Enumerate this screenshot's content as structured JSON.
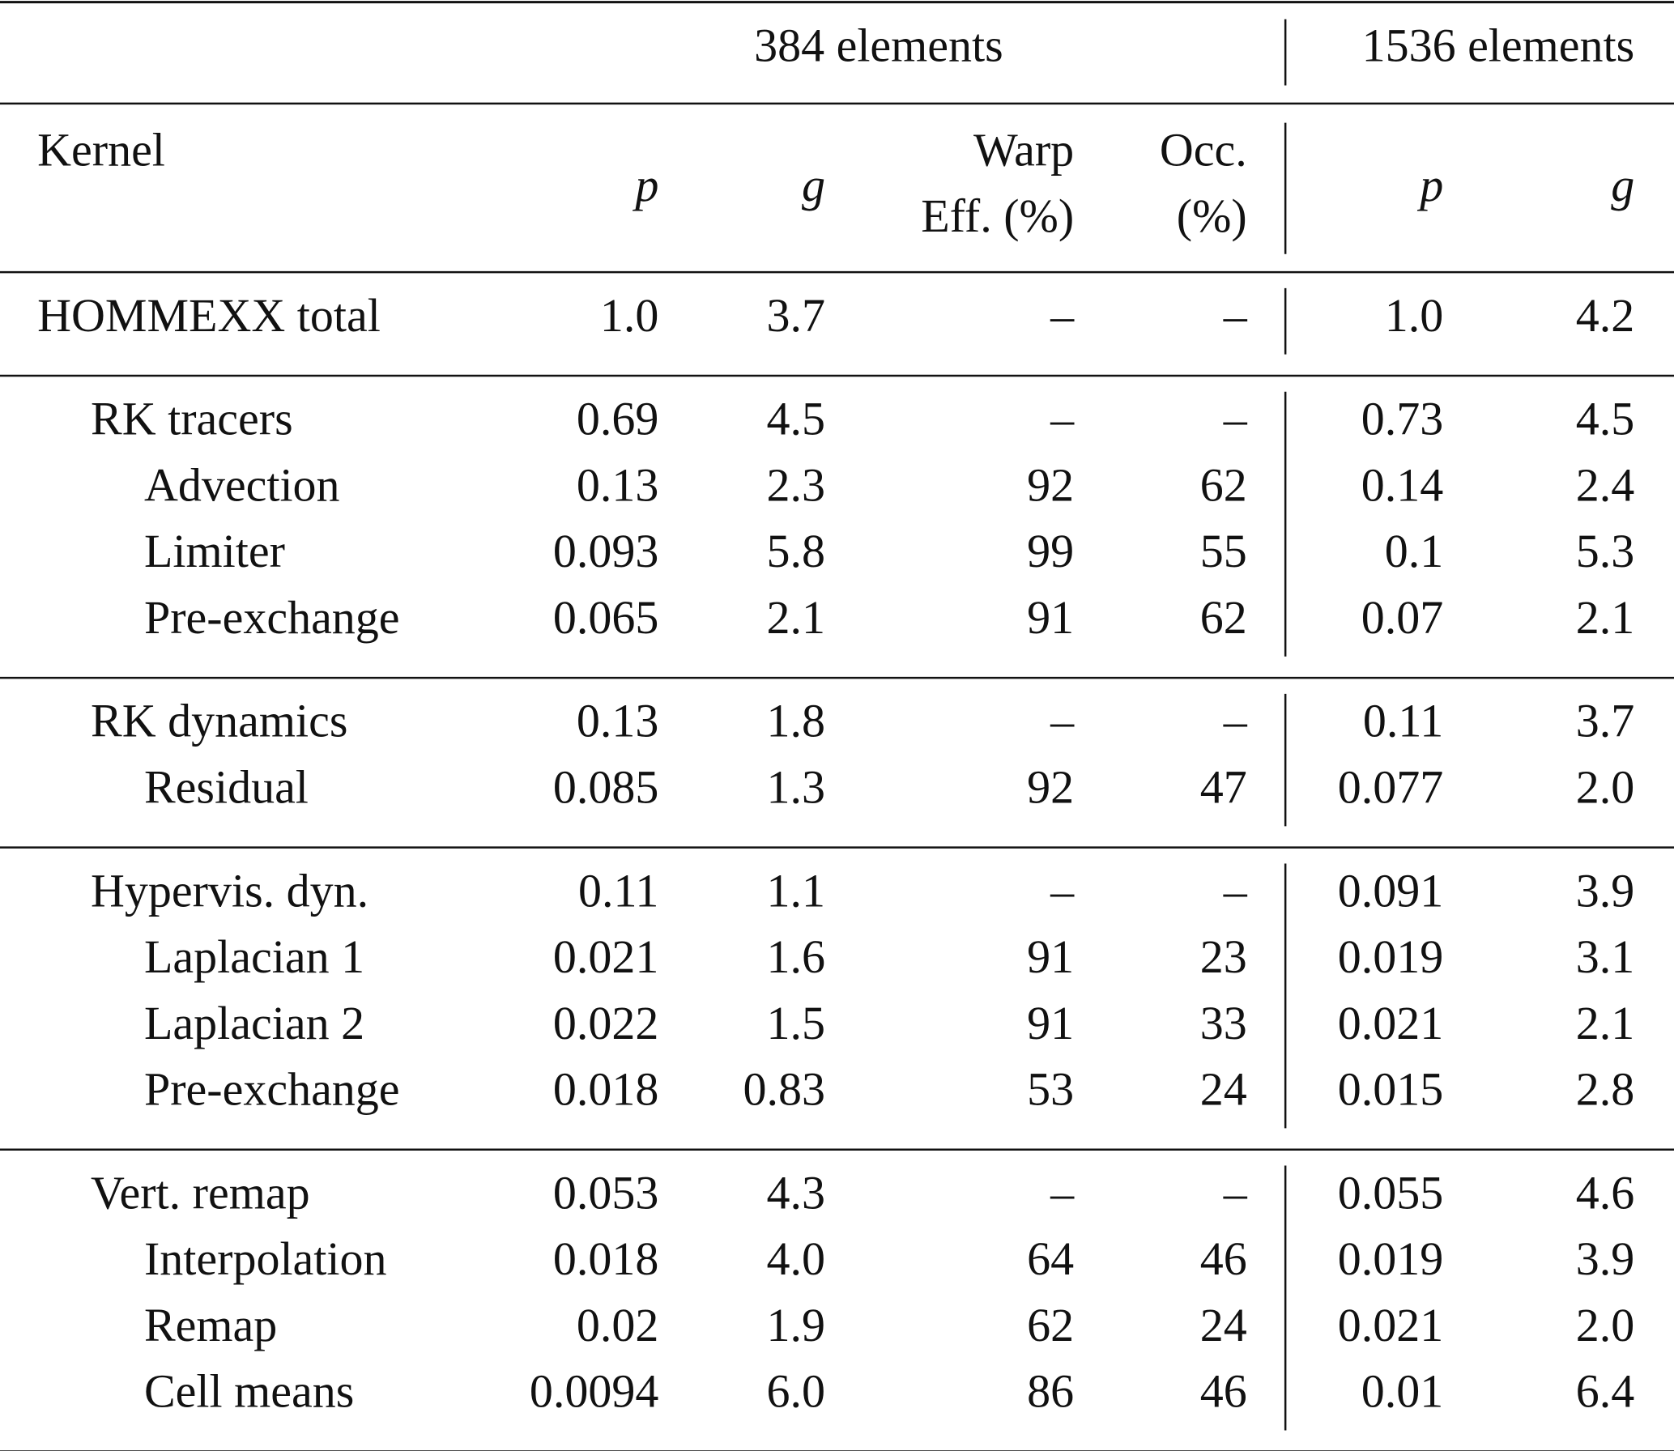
{
  "table": {
    "groups": [
      "384 elements",
      "1536 elements"
    ],
    "columns": [
      "Kernel",
      "p",
      "g",
      [
        "Warp",
        "Eff. (%)"
      ],
      [
        "Occ.",
        "(%)"
      ],
      "p",
      "g"
    ],
    "sections": [
      {
        "rows": [
          [
            "HOMMEXX total",
            "1.0",
            "3.7",
            "–",
            "–",
            "1.0",
            "4.2"
          ]
        ]
      },
      {
        "rows": [
          [
            "RK tracers",
            "0.69",
            "4.5",
            "–",
            "–",
            "0.73",
            "4.5"
          ],
          [
            "Advection",
            "0.13",
            "2.3",
            "92",
            "62",
            "0.14",
            "2.4"
          ],
          [
            "Limiter",
            "0.093",
            "5.8",
            "99",
            "55",
            "0.1",
            "5.3"
          ],
          [
            "Pre-exchange",
            "0.065",
            "2.1",
            "91",
            "62",
            "0.07",
            "2.1"
          ]
        ]
      },
      {
        "rows": [
          [
            "RK dynamics",
            "0.13",
            "1.8",
            "–",
            "–",
            "0.11",
            "3.7"
          ],
          [
            "Residual",
            "0.085",
            "1.3",
            "92",
            "47",
            "0.077",
            "2.0"
          ]
        ]
      },
      {
        "rows": [
          [
            "Hypervis. dyn.",
            "0.11",
            "1.1",
            "–",
            "–",
            "0.091",
            "3.9"
          ],
          [
            "Laplacian 1",
            "0.021",
            "1.6",
            "91",
            "23",
            "0.019",
            "3.1"
          ],
          [
            "Laplacian 2",
            "0.022",
            "1.5",
            "91",
            "33",
            "0.021",
            "2.1"
          ],
          [
            "Pre-exchange",
            "0.018",
            "0.83",
            "53",
            "24",
            "0.015",
            "2.8"
          ]
        ]
      },
      {
        "rows": [
          [
            "Vert. remap",
            "0.053",
            "4.3",
            "–",
            "–",
            "0.055",
            "4.6"
          ],
          [
            "Interpolation",
            "0.018",
            "4.0",
            "64",
            "46",
            "0.019",
            "3.9"
          ],
          [
            "Remap",
            "0.02",
            "1.9",
            "62",
            "24",
            "0.021",
            "2.0"
          ],
          [
            "Cell means",
            "0.0094",
            "6.0",
            "86",
            "46",
            "0.01",
            "6.4"
          ]
        ]
      }
    ]
  }
}
